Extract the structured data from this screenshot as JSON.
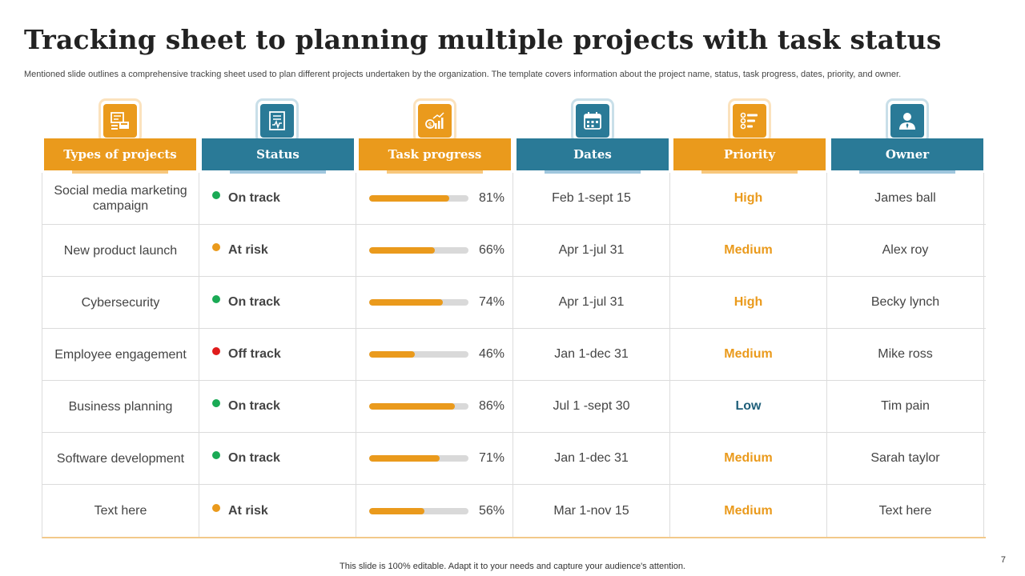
{
  "title": "Tracking sheet to planning multiple projects with task status",
  "subtitle": "Mentioned slide outlines a comprehensive tracking sheet used to plan different projects undertaken by the organization. The template covers information about the project name, status, task progress, dates, priority, and owner.",
  "footer": "This slide is 100% editable. Adapt it to your needs and capture your audience's attention.",
  "page_number": "7",
  "colors": {
    "orange": "#ea9a1c",
    "blue": "#2a7a97",
    "on_track": "#1aaa55",
    "at_risk": "#ea9a1c",
    "off_track": "#e01b1b",
    "priority_low": "#1f5f7a"
  },
  "columns": [
    {
      "label": "Types of projects",
      "icon": "projects-icon"
    },
    {
      "label": "Status",
      "icon": "status-document-icon"
    },
    {
      "label": "Task progress",
      "icon": "growth-chart-icon"
    },
    {
      "label": "Dates",
      "icon": "calendar-icon"
    },
    {
      "label": "Priority",
      "icon": "priority-list-icon"
    },
    {
      "label": "Owner",
      "icon": "owner-person-icon"
    }
  ],
  "rows": [
    {
      "project": "Social media marketing campaign",
      "status": "On track",
      "progress": 81,
      "progress_label": "81%",
      "dates": "Feb 1-sept 15",
      "priority": "High",
      "owner": "James ball"
    },
    {
      "project": "New product launch",
      "status": "At risk",
      "progress": 66,
      "progress_label": "66%",
      "dates": "Apr 1-jul 31",
      "priority": "Medium",
      "owner": "Alex roy"
    },
    {
      "project": "Cybersecurity",
      "status": "On track",
      "progress": 74,
      "progress_label": "74%",
      "dates": "Apr 1-jul 31",
      "priority": "High",
      "owner": "Becky lynch"
    },
    {
      "project": "Employee engagement",
      "status": "Off track",
      "progress": 46,
      "progress_label": "46%",
      "dates": "Jan 1-dec 31",
      "priority": "Medium",
      "owner": "Mike ross"
    },
    {
      "project": "Business planning",
      "status": "On track",
      "progress": 86,
      "progress_label": "86%",
      "dates": "Jul 1 -sept 30",
      "priority": "Low",
      "owner": "Tim pain"
    },
    {
      "project": "Software development",
      "status": "On track",
      "progress": 71,
      "progress_label": "71%",
      "dates": "Jan 1-dec 31",
      "priority": "Medium",
      "owner": "Sarah taylor"
    },
    {
      "project": "Text here",
      "status": "At risk",
      "progress": 56,
      "progress_label": "56%",
      "dates": "Mar 1-nov 15",
      "priority": "Medium",
      "owner": "Text here"
    }
  ]
}
